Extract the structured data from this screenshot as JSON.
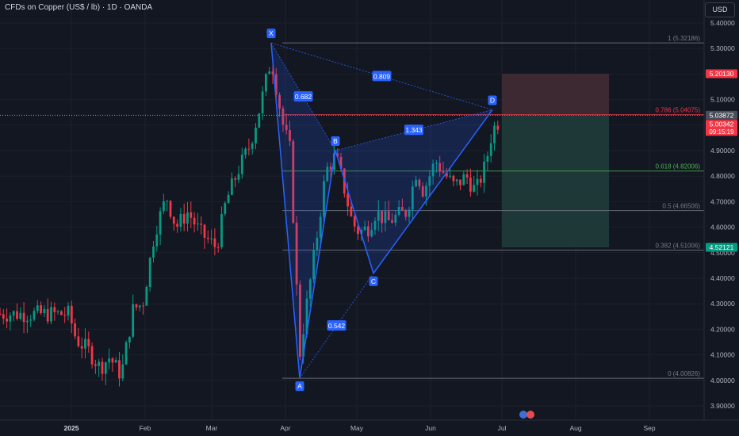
{
  "header": {
    "title": "CFDs on Copper (US$ / lb) · 1D · OANDA",
    "currency_button": "USD"
  },
  "chart_data": {
    "type": "candlestick",
    "y_axis_ticks": [
      "5.40000",
      "5.30000",
      "5.20000",
      "5.10000",
      "5.00000",
      "4.90000",
      "4.80000",
      "4.70000",
      "4.60000",
      "4.50000",
      "4.40000",
      "4.30000",
      "4.20000",
      "4.10000",
      "4.00000",
      "3.90000"
    ],
    "x_axis_ticks": [
      {
        "label": "2025",
        "date": "2025-01-01",
        "bold": true
      },
      {
        "label": "Feb",
        "date": "2025-02-01",
        "bold": false
      },
      {
        "label": "Mar",
        "date": "2025-03-01",
        "bold": false
      },
      {
        "label": "Apr",
        "date": "2025-04-01",
        "bold": false
      },
      {
        "label": "May",
        "date": "2025-05-01",
        "bold": false
      },
      {
        "label": "Jun",
        "date": "2025-06-01",
        "bold": false
      },
      {
        "label": "Jul",
        "date": "2025-07-01",
        "bold": false
      },
      {
        "label": "Aug",
        "date": "2025-08-01",
        "bold": false
      },
      {
        "label": "Sep",
        "date": "2025-09-01",
        "bold": false
      }
    ],
    "colors": {
      "up": "#089981",
      "down": "#f23645",
      "pattern": "#2962ff",
      "target_zone": "#3f2a33",
      "stop_zone": "#1f3a3a"
    },
    "harmonic_pattern": {
      "points": [
        {
          "label": "X",
          "date": "2025-03-26",
          "price": 5.32186
        },
        {
          "label": "A",
          "date": "2025-04-07",
          "price": 4.00826
        },
        {
          "label": "B",
          "date": "2025-04-22",
          "price": 4.9
        },
        {
          "label": "C",
          "date": "2025-05-08",
          "price": 4.4194
        },
        {
          "label": "D",
          "date": "2025-06-27",
          "price": 5.06
        }
      ],
      "ratios": [
        {
          "text": "0.682",
          "from": "X",
          "to": "B"
        },
        {
          "text": "0.809",
          "from": "X",
          "to": "D"
        },
        {
          "text": "1.343",
          "from": "B",
          "to": "D"
        },
        {
          "text": "0.542",
          "from": "A",
          "to": "C"
        }
      ]
    },
    "fib_levels": [
      {
        "ratio": "1",
        "price": 5.32186,
        "label": "1 (5.32186)",
        "color": "#787b86"
      },
      {
        "ratio": "0.786",
        "price": 5.04075,
        "label": "0.786 (5.04075)",
        "color": "#f23645"
      },
      {
        "ratio": "0.618",
        "price": 4.82006,
        "label": "0.618 (4.82006)",
        "color": "#4caf50"
      },
      {
        "ratio": "0.5",
        "price": 4.66506,
        "label": "0.5 (4.66506)",
        "color": "#787b86"
      },
      {
        "ratio": "0.382",
        "price": 4.51006,
        "label": "0.382 (4.51006)",
        "color": "#787b86"
      },
      {
        "ratio": "0",
        "price": 4.00826,
        "label": "0 (4.00826)",
        "color": "#787b86"
      }
    ],
    "price_labels": [
      {
        "text": "5.20130",
        "price": 5.2013,
        "bg": "#f23645",
        "fg": "#ffffff"
      },
      {
        "text": "5.03872",
        "price": 5.03872,
        "bg": "#4a4e59",
        "fg": "#ffffff"
      },
      {
        "text": "5.00342",
        "price": 5.00342,
        "bg": "#f23645",
        "fg": "#ffffff",
        "sub": "09:15:19"
      },
      {
        "text": "4.52121",
        "price": 4.52121,
        "bg": "#089981",
        "fg": "#ffffff"
      }
    ],
    "position": {
      "entry": 5.03872,
      "stop": 5.2013,
      "target": 4.52121,
      "start": "2025-07-01",
      "end": "2025-08-15"
    }
  }
}
